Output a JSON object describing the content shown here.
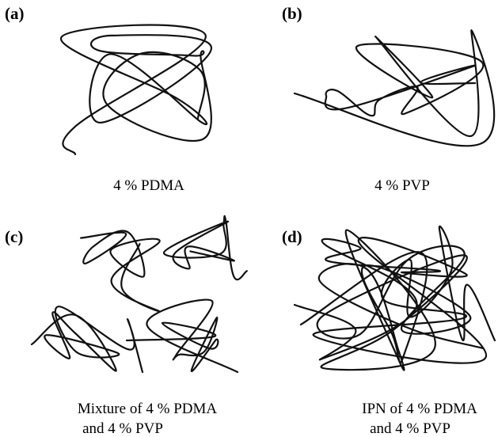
{
  "panels": [
    {
      "label": "(a)",
      "caption": [
        "4 % PDMA"
      ]
    },
    {
      "label": "(b)",
      "caption": [
        "4 % PVP"
      ]
    },
    {
      "label": "(c)",
      "caption": [
        "Mixture of 4 % PDMA",
        "and 4 % PVP"
      ]
    },
    {
      "label": "(d)",
      "caption": [
        "IPN of 4 % PDMA",
        "and 4 % PVP"
      ]
    }
  ]
}
